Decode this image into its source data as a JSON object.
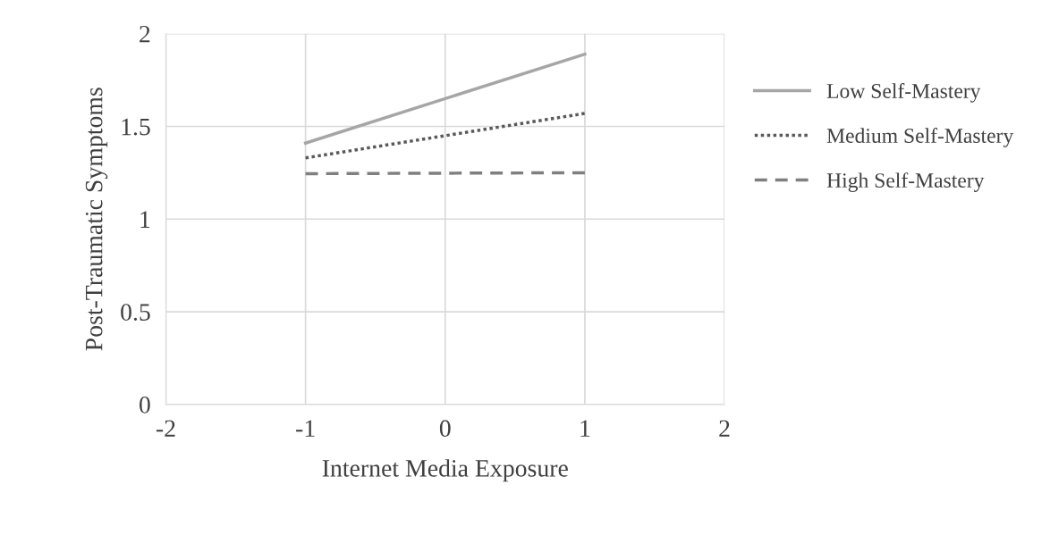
{
  "chart_data": {
    "type": "line",
    "xlabel": "Internet Media Exposure",
    "ylabel": "Post-Traumatic Symptoms",
    "x": [
      -1,
      1
    ],
    "series": [
      {
        "name": "Low Self-Mastery",
        "color": "#a6a6a6",
        "values": [
          1.41,
          1.89
        ],
        "line_style": "solid"
      },
      {
        "name": "Medium Self-Mastery",
        "color": "#595959",
        "values": [
          1.33,
          1.57
        ],
        "line_style": "dotted"
      },
      {
        "name": "High Self-Mastery",
        "color": "#7f7f7f",
        "values": [
          1.245,
          1.25
        ],
        "line_style": "dashed"
      }
    ],
    "xlim": [
      -2,
      2
    ],
    "xticks": [
      -2,
      -1,
      0,
      1,
      2
    ],
    "ylim": [
      0,
      2
    ],
    "yticks": [
      0,
      0.5,
      1,
      1.5,
      2
    ],
    "grid": true,
    "legend": "right",
    "marker": "none"
  }
}
